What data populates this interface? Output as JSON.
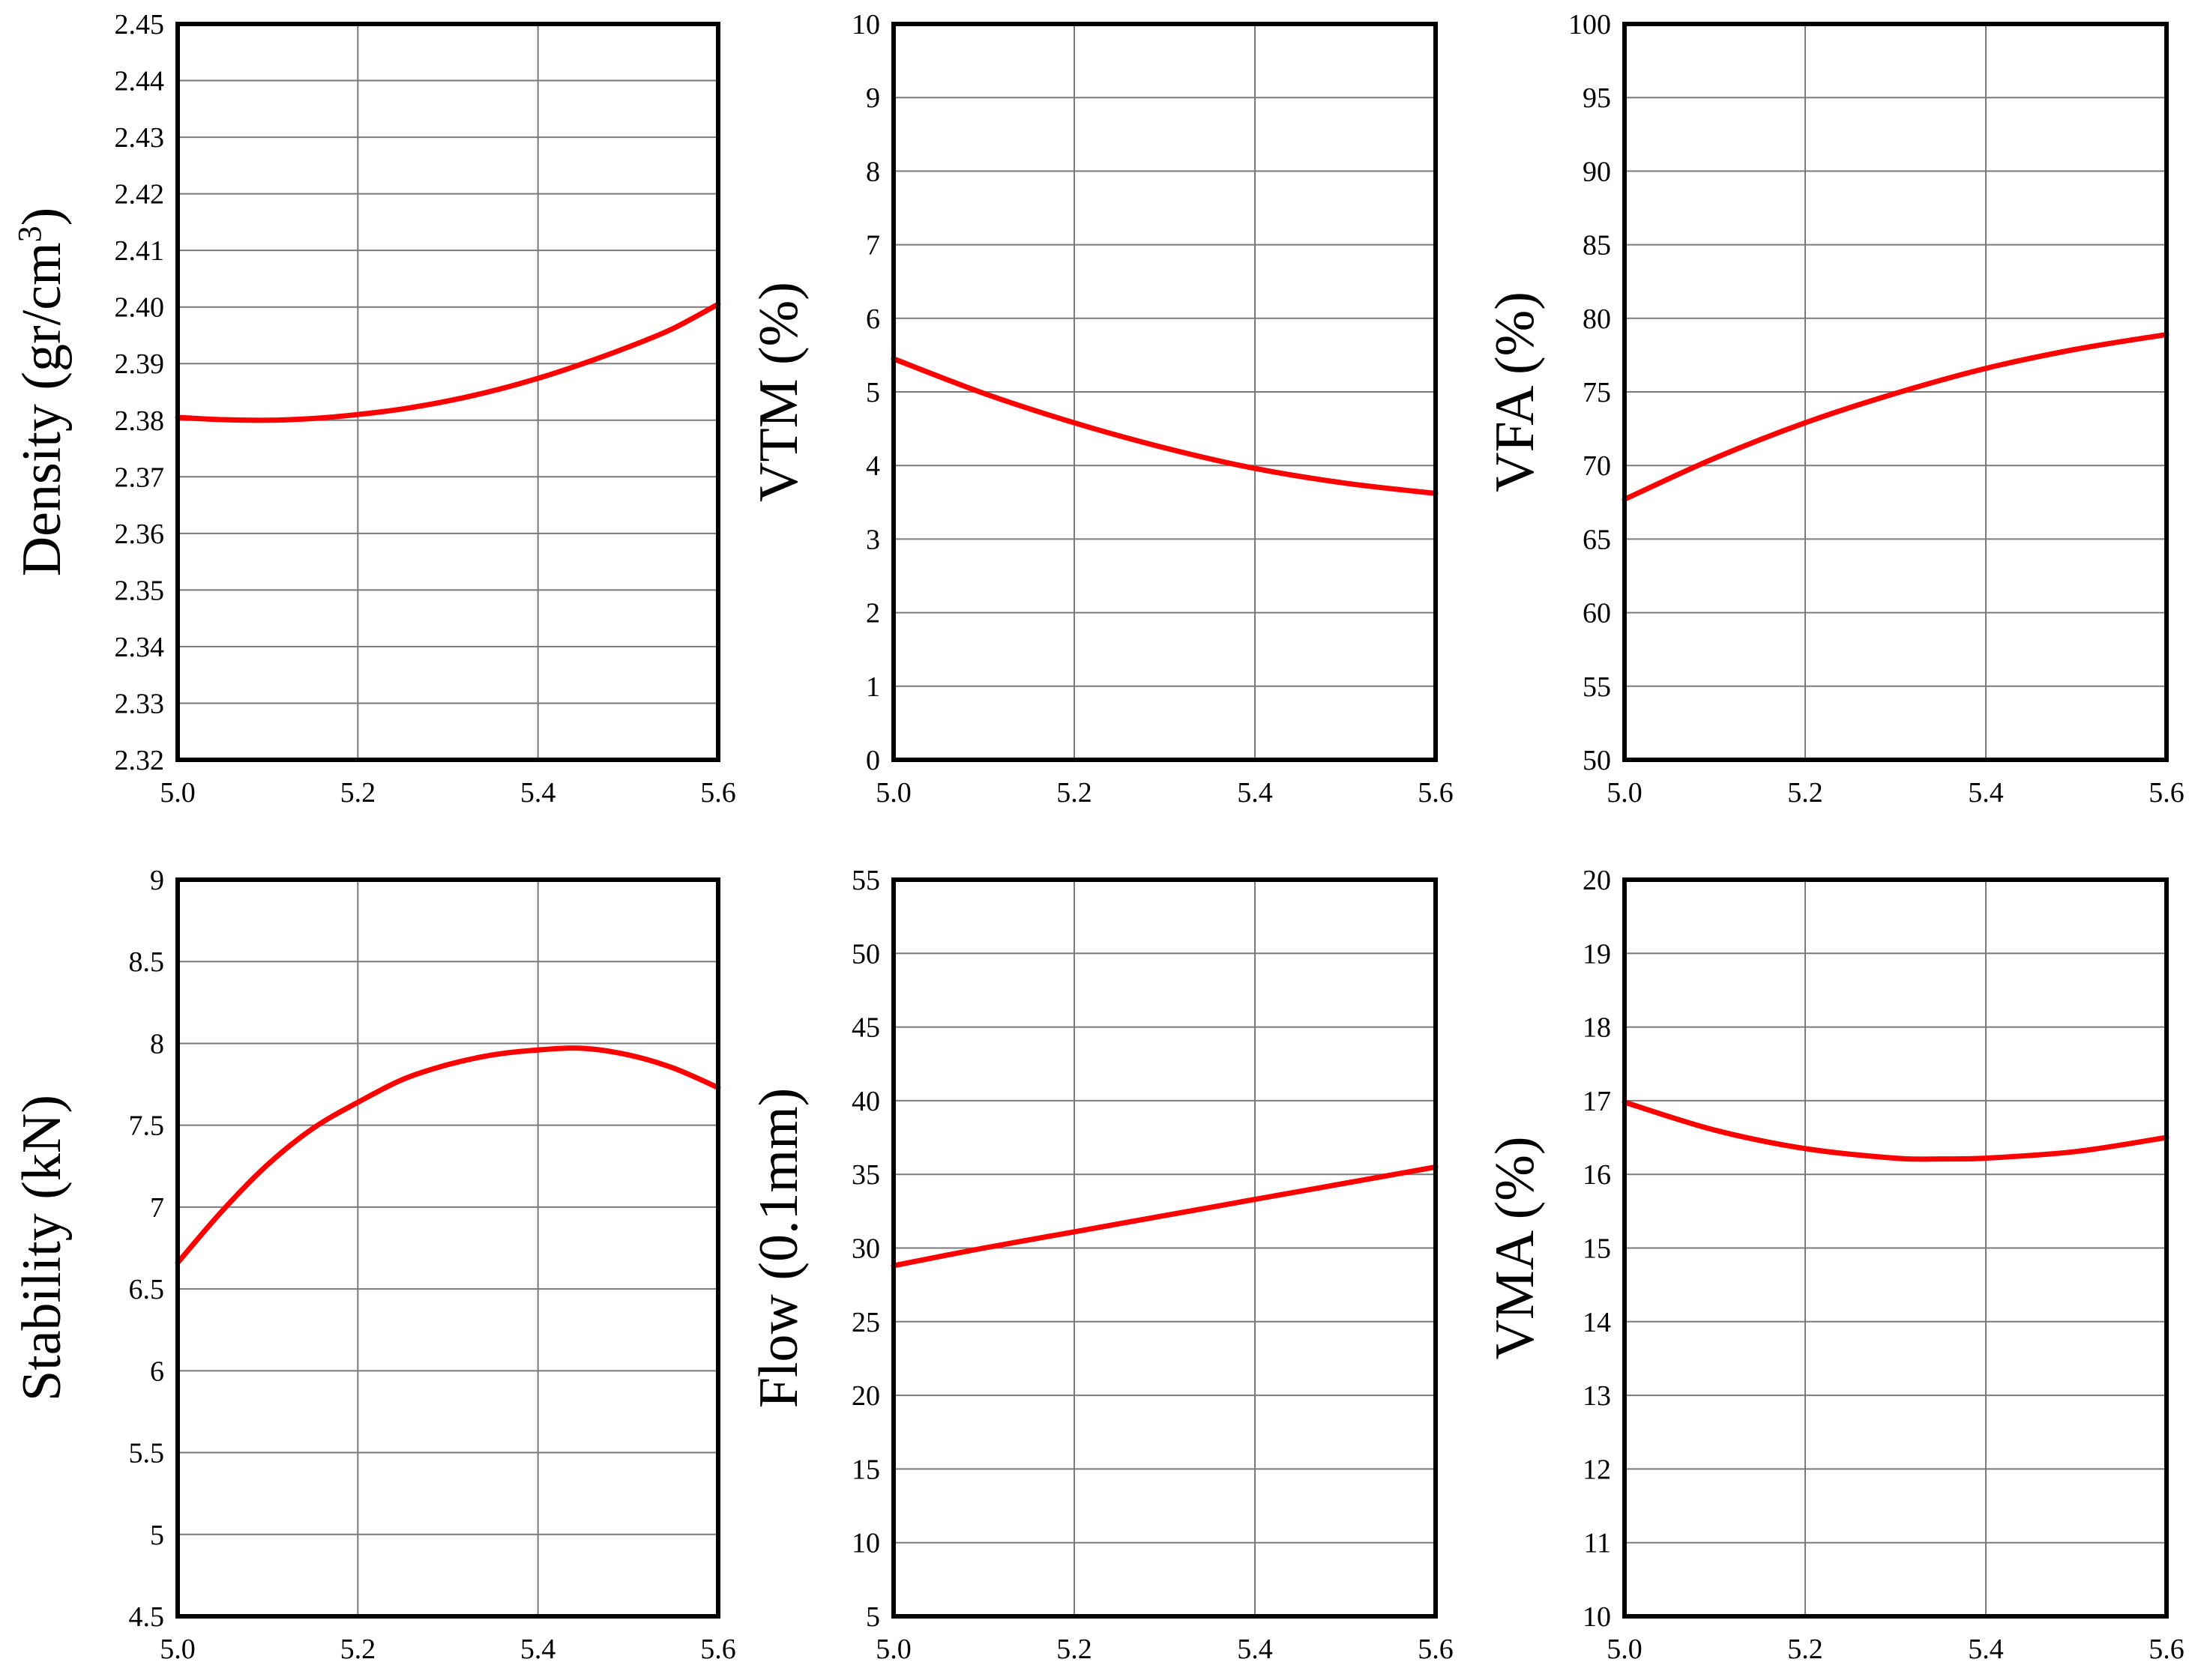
{
  "chart_data": [
    {
      "type": "line",
      "ylabel": "Density (gr/cm",
      "ylabel_sup": "3",
      "ylabel_end": ")",
      "xlim": [
        5.0,
        5.6
      ],
      "ylim": [
        2.32,
        2.45
      ],
      "xticks": [
        5.0,
        5.2,
        5.4,
        5.6
      ],
      "xtick_labels": [
        "5.0",
        "5.2",
        "5.4",
        "5.6"
      ],
      "yticks": [
        2.32,
        2.33,
        2.34,
        2.35,
        2.36,
        2.37,
        2.38,
        2.39,
        2.4,
        2.41,
        2.42,
        2.43,
        2.44,
        2.45
      ],
      "ytick_labels": [
        "2.32",
        "2.33",
        "2.34",
        "2.35",
        "2.36",
        "2.37",
        "2.38",
        "2.39",
        "2.40",
        "2.41",
        "2.42",
        "2.43",
        "2.44",
        "2.45"
      ],
      "grid": true,
      "series": [
        {
          "color": "#ff0000",
          "x": [
            5.0,
            5.05,
            5.1,
            5.15,
            5.2,
            5.25,
            5.3,
            5.35,
            5.4,
            5.45,
            5.5,
            5.55,
            5.6
          ],
          "y": [
            2.3805,
            2.3801,
            2.38,
            2.3803,
            2.381,
            2.382,
            2.3834,
            2.3852,
            2.3874,
            2.39,
            2.3929,
            2.3962,
            2.4005
          ]
        }
      ]
    },
    {
      "type": "line",
      "ylabel": "VTM (%)",
      "xlim": [
        5.0,
        5.6
      ],
      "ylim": [
        0,
        10
      ],
      "xticks": [
        5.0,
        5.2,
        5.4,
        5.6
      ],
      "xtick_labels": [
        "5.0",
        "5.2",
        "5.4",
        "5.6"
      ],
      "yticks": [
        0,
        1,
        2,
        3,
        4,
        5,
        6,
        7,
        8,
        9,
        10
      ],
      "ytick_labels": [
        "0",
        "1",
        "2",
        "3",
        "4",
        "5",
        "6",
        "7",
        "8",
        "9",
        "10"
      ],
      "grid": true,
      "series": [
        {
          "color": "#ff0000",
          "x": [
            5.0,
            5.1,
            5.2,
            5.3,
            5.4,
            5.5,
            5.6
          ],
          "y": [
            5.45,
            4.98,
            4.58,
            4.24,
            3.96,
            3.76,
            3.62
          ]
        }
      ]
    },
    {
      "type": "line",
      "ylabel": "VFA (%)",
      "xlim": [
        5.0,
        5.6
      ],
      "ylim": [
        50,
        100
      ],
      "xticks": [
        5.0,
        5.2,
        5.4,
        5.6
      ],
      "xtick_labels": [
        "5.0",
        "5.2",
        "5.4",
        "5.6"
      ],
      "yticks": [
        50,
        55,
        60,
        65,
        70,
        75,
        80,
        85,
        90,
        95,
        100
      ],
      "ytick_labels": [
        "50",
        "55",
        "60",
        "65",
        "70",
        "75",
        "80",
        "85",
        "90",
        "95",
        "100"
      ],
      "grid": true,
      "series": [
        {
          "color": "#ff0000",
          "x": [
            5.0,
            5.1,
            5.2,
            5.3,
            5.4,
            5.5,
            5.6
          ],
          "y": [
            67.7,
            70.5,
            72.9,
            74.9,
            76.6,
            77.9,
            78.9
          ]
        }
      ]
    },
    {
      "type": "line",
      "ylabel": "Stability (kN)",
      "xlim": [
        5.0,
        5.6
      ],
      "ylim": [
        4.5,
        9
      ],
      "xticks": [
        5.0,
        5.2,
        5.4,
        5.6
      ],
      "xtick_labels": [
        "5.0",
        "5.2",
        "5.4",
        "5.6"
      ],
      "yticks": [
        4.5,
        5,
        5.5,
        6,
        6.5,
        7,
        7.5,
        8,
        8.5,
        9
      ],
      "ytick_labels": [
        "4.5",
        "5",
        "5.5",
        "6",
        "6.5",
        "7",
        "7.5",
        "8",
        "8.5",
        "9"
      ],
      "grid": true,
      "series": [
        {
          "color": "#ff0000",
          "x": [
            5.0,
            5.05,
            5.1,
            5.15,
            5.2,
            5.25,
            5.3,
            5.35,
            5.4,
            5.45,
            5.5,
            5.55,
            5.6
          ],
          "y": [
            6.66,
            6.98,
            7.26,
            7.48,
            7.64,
            7.78,
            7.87,
            7.93,
            7.96,
            7.97,
            7.93,
            7.85,
            7.73
          ]
        }
      ]
    },
    {
      "type": "line",
      "ylabel": "Flow (0.1mm)",
      "xlim": [
        5.0,
        5.6
      ],
      "ylim": [
        5,
        55
      ],
      "xticks": [
        5.0,
        5.2,
        5.4,
        5.6
      ],
      "xtick_labels": [
        "5.0",
        "5.2",
        "5.4",
        "5.6"
      ],
      "yticks": [
        5,
        10,
        15,
        20,
        25,
        30,
        35,
        40,
        45,
        50,
        55
      ],
      "ytick_labels": [
        "5",
        "10",
        "15",
        "20",
        "25",
        "30",
        "35",
        "40",
        "45",
        "50",
        "55"
      ],
      "grid": true,
      "series": [
        {
          "color": "#ff0000",
          "x": [
            5.0,
            5.1,
            5.2,
            5.3,
            5.4,
            5.5,
            5.6
          ],
          "y": [
            28.8,
            30.0,
            31.1,
            32.2,
            33.3,
            34.4,
            35.5
          ]
        }
      ]
    },
    {
      "type": "line",
      "ylabel": "VMA (%)",
      "xlim": [
        5.0,
        5.6
      ],
      "ylim": [
        10,
        20
      ],
      "xticks": [
        5.0,
        5.2,
        5.4,
        5.6
      ],
      "xtick_labels": [
        "5.0",
        "5.2",
        "5.4",
        "5.6"
      ],
      "yticks": [
        10,
        11,
        12,
        13,
        14,
        15,
        16,
        17,
        18,
        19,
        20
      ],
      "ytick_labels": [
        "10",
        "11",
        "12",
        "13",
        "14",
        "15",
        "16",
        "17",
        "18",
        "19",
        "20"
      ],
      "grid": true,
      "series": [
        {
          "color": "#ff0000",
          "x": [
            5.0,
            5.1,
            5.2,
            5.3,
            5.35,
            5.4,
            5.5,
            5.6
          ],
          "y": [
            16.98,
            16.6,
            16.35,
            16.22,
            16.21,
            16.22,
            16.31,
            16.5
          ]
        }
      ]
    }
  ]
}
